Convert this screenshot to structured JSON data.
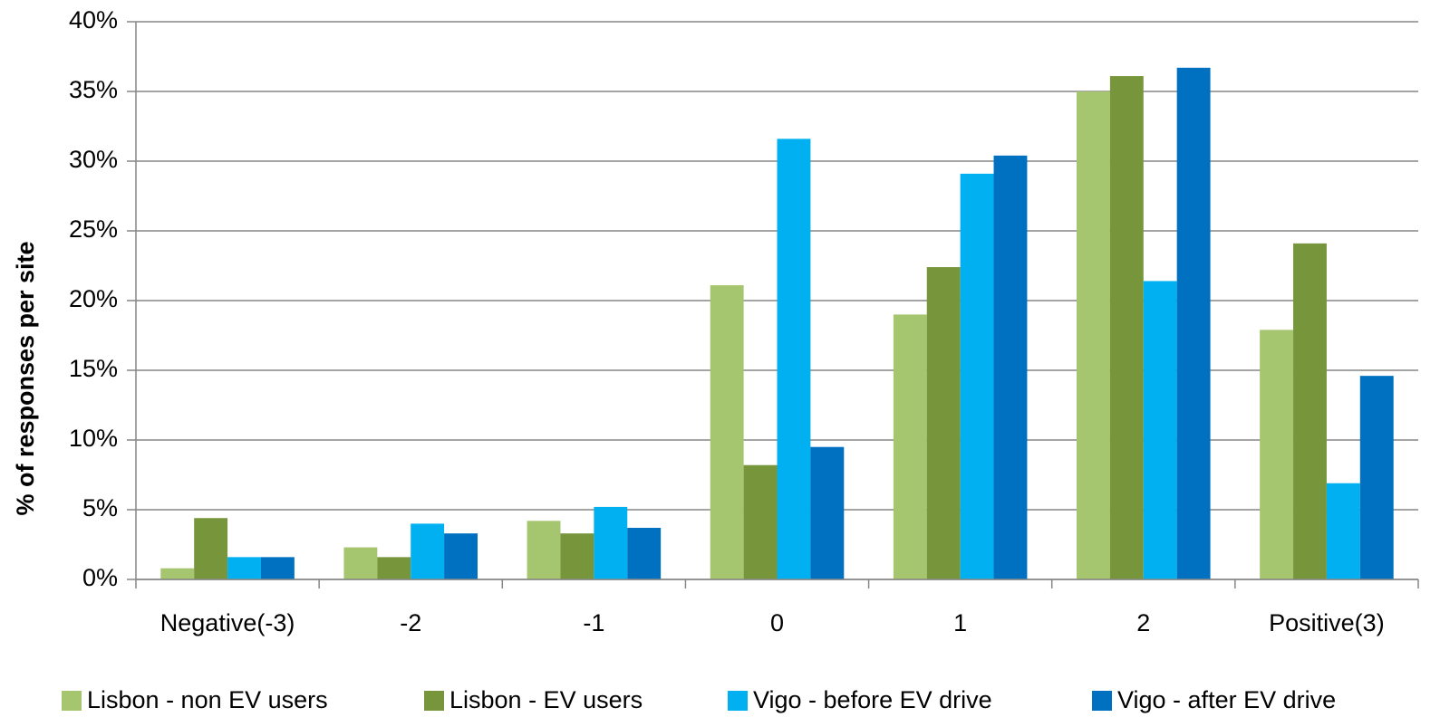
{
  "chart_data": {
    "type": "bar",
    "ylabel": "% of responses per site",
    "categories": [
      "Negative(-3)",
      "-2",
      "-1",
      "0",
      "1",
      "2",
      "Positive(3)"
    ],
    "series": [
      {
        "name": "Lisbon - non EV users",
        "color": "#a5c56f",
        "values": [
          0.8,
          2.3,
          4.2,
          21.1,
          19.0,
          35.0,
          17.9
        ]
      },
      {
        "name": "Lisbon - EV users",
        "color": "#77963c",
        "values": [
          4.4,
          1.6,
          3.3,
          8.2,
          22.4,
          36.1,
          24.1
        ]
      },
      {
        "name": "Vigo - before EV drive",
        "color": "#00b0f0",
        "values": [
          1.6,
          4.0,
          5.2,
          31.6,
          29.1,
          21.4,
          6.9
        ]
      },
      {
        "name": "Vigo - after EV drive",
        "color": "#0070c0",
        "values": [
          1.6,
          3.3,
          3.7,
          9.5,
          30.4,
          36.7,
          14.6
        ]
      }
    ],
    "ylim": [
      0,
      40
    ],
    "yticks": [
      {
        "value": 0,
        "label": "0%"
      },
      {
        "value": 5,
        "label": "5%"
      },
      {
        "value": 10,
        "label": "10%"
      },
      {
        "value": 15,
        "label": "15%"
      },
      {
        "value": 20,
        "label": "20%"
      },
      {
        "value": 25,
        "label": "25%"
      },
      {
        "value": 30,
        "label": "30%"
      },
      {
        "value": 35,
        "label": "35%"
      },
      {
        "value": 40,
        "label": "40%"
      }
    ],
    "grid": true,
    "legend": "bottom"
  }
}
